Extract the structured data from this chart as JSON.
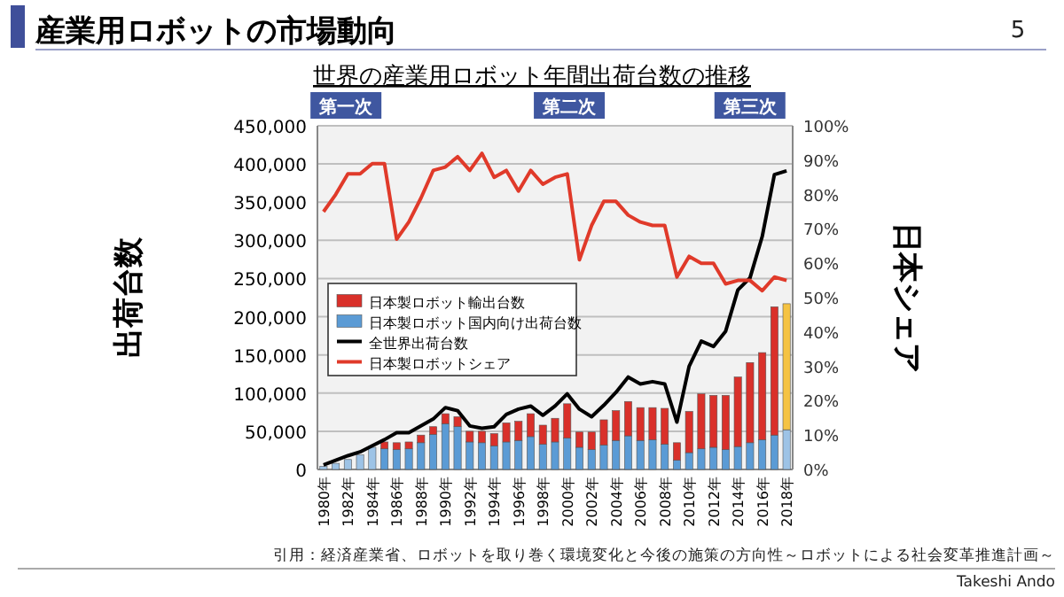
{
  "chart_data": {
    "type": "bar",
    "title": "産業用ロボットの市場動向",
    "subtitle": "世界の産業用ロボット年間出荷台数の推移",
    "ylabel": "出荷台数",
    "y2label": "日本シェア",
    "categories": [
      "1980年",
      null,
      "1982年",
      null,
      "1984年",
      null,
      "1986年",
      null,
      "1988年",
      null,
      "1990年",
      null,
      "1992年",
      null,
      "1994年",
      null,
      "1996年",
      null,
      "1998年",
      null,
      "2000年",
      null,
      "2002年",
      null,
      "2004年",
      null,
      "2006年",
      null,
      "2008年",
      null,
      "2010年",
      null,
      "2012年",
      null,
      "2014年",
      null,
      "2016年",
      null,
      "2018年"
    ],
    "stacked": true,
    "series": [
      {
        "name": "日本製ロボット国内向け出荷台数",
        "color": "#5b9bd5",
        "colors": [
          "#9dc3e6",
          "#9dc3e6",
          "#9dc3e6",
          "#9dc3e6",
          "#9dc3e6",
          "#5b9bd5",
          "#5b9bd5",
          "#5b9bd5",
          "#5b9bd5",
          "#5b9bd5",
          "#5b9bd5",
          "#5b9bd5",
          "#5b9bd5",
          "#5b9bd5",
          "#5b9bd5",
          "#5b9bd5",
          "#5b9bd5",
          "#5b9bd5",
          "#5b9bd5",
          "#5b9bd5",
          "#5b9bd5",
          "#5b9bd5",
          "#5b9bd5",
          "#5b9bd5",
          "#5b9bd5",
          "#5b9bd5",
          "#5b9bd5",
          "#5b9bd5",
          "#5b9bd5",
          "#5b9bd5",
          "#5b9bd5",
          "#5b9bd5",
          "#5b9bd5",
          "#5b9bd5",
          "#5b9bd5",
          "#5b9bd5",
          "#5b9bd5",
          "#5b9bd5",
          "#9dc3e6"
        ],
        "values": [
          4000,
          8000,
          13000,
          19000,
          29000,
          27000,
          26000,
          27000,
          35000,
          46000,
          60000,
          56000,
          36000,
          35000,
          31000,
          36000,
          38000,
          43000,
          33000,
          36000,
          41000,
          29000,
          26000,
          32000,
          38000,
          44000,
          38000,
          39000,
          33000,
          12000,
          22000,
          27000,
          29000,
          26000,
          30000,
          35000,
          39000,
          45000,
          52000
        ]
      },
      {
        "name": "日本製ロボット輸出台数",
        "color": "#d9302a",
        "colors": [
          "#d9302a",
          "#d9302a",
          "#d9302a",
          "#d9302a",
          "#d9302a",
          "#d9302a",
          "#d9302a",
          "#d9302a",
          "#d9302a",
          "#d9302a",
          "#d9302a",
          "#d9302a",
          "#d9302a",
          "#d9302a",
          "#d9302a",
          "#d9302a",
          "#d9302a",
          "#d9302a",
          "#d9302a",
          "#d9302a",
          "#d9302a",
          "#d9302a",
          "#d9302a",
          "#d9302a",
          "#d9302a",
          "#d9302a",
          "#d9302a",
          "#d9302a",
          "#d9302a",
          "#d9302a",
          "#d9302a",
          "#d9302a",
          "#d9302a",
          "#d9302a",
          "#d9302a",
          "#d9302a",
          "#d9302a",
          "#d9302a",
          "#f5c342"
        ],
        "values": [
          null,
          null,
          null,
          null,
          null,
          9000,
          9000,
          9000,
          10000,
          10000,
          13000,
          13000,
          14000,
          15000,
          16000,
          25000,
          25000,
          30000,
          25000,
          31000,
          45000,
          20000,
          23000,
          33000,
          39000,
          45000,
          43000,
          42000,
          47000,
          23000,
          54000,
          72000,
          68000,
          71000,
          91000,
          105000,
          114000,
          168000,
          165000
        ]
      },
      {
        "name": "全世界出荷台数",
        "type": "line",
        "color": "#000000",
        "values": [
          6000,
          12000,
          18000,
          23000,
          31000,
          39000,
          48000,
          48000,
          57000,
          66000,
          81000,
          77000,
          57000,
          54000,
          56000,
          72000,
          79000,
          83000,
          71000,
          83000,
          99000,
          79000,
          69000,
          84000,
          101000,
          121000,
          112000,
          115000,
          112000,
          62000,
          135000,
          168000,
          161000,
          181000,
          235000,
          251000,
          305000,
          386000,
          391000
        ]
      },
      {
        "name": "日本製ロボットシェア",
        "type": "line",
        "axis": "y2",
        "color": "#e03a2a",
        "values": [
          75,
          80,
          86,
          86,
          89,
          89,
          67,
          72,
          79,
          87,
          88,
          91,
          87,
          92,
          85,
          87,
          81,
          87,
          83,
          85,
          86,
          61,
          71,
          78,
          78,
          74,
          72,
          71,
          71,
          56,
          62,
          60,
          60,
          54,
          55,
          55,
          52,
          56,
          55
        ]
      }
    ],
    "ylim": [
      0,
      450000
    ],
    "yticks": [
      0,
      {
        "value": 50000,
        "label": "50,000"
      },
      {
        "value": 100000,
        "label": "100,000"
      },
      {
        "value": 150000,
        "label": "150,000"
      },
      {
        "value": 200000,
        "label": "200,000"
      },
      {
        "value": 250000,
        "label": "250,000"
      },
      {
        "value": 300000,
        "label": "300,000"
      },
      {
        "value": 350000,
        "label": "350,000"
      },
      {
        "value": 400000,
        "label": "400,000"
      },
      {
        "value": 450000,
        "label": "450,000"
      }
    ],
    "y2lim": [
      0,
      100
    ],
    "y2ticks": [
      {
        "value": 0,
        "label": "0%"
      },
      {
        "value": 10,
        "label": "10%"
      },
      {
        "value": 20,
        "label": "20%"
      },
      {
        "value": 30,
        "label": "30%"
      },
      {
        "value": 40,
        "label": "40%"
      },
      {
        "value": 50,
        "label": "50%"
      },
      {
        "value": 60,
        "label": "60%"
      },
      {
        "value": 70,
        "label": "70%"
      },
      {
        "value": 80,
        "label": "80%"
      },
      {
        "value": 90,
        "label": "90%"
      },
      {
        "value": 100,
        "label": "100%"
      }
    ],
    "grid": "y",
    "legend": "left",
    "annotations": [
      "第一次",
      "第二次",
      "第三次",
      "5",
      "引用：経済産業省、ロボットを取り巻く環境変化と今後の施策の方向性～ロボットによる社会変革推進計画～",
      "Takeshi Ando"
    ]
  }
}
